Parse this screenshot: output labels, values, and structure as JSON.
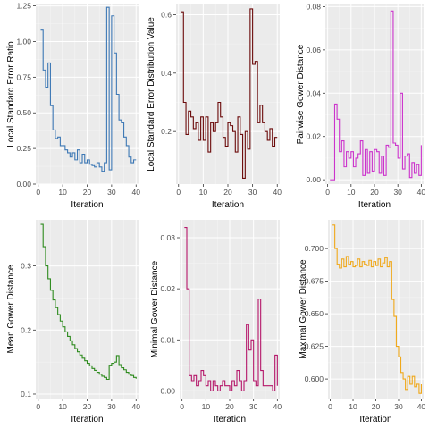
{
  "chart_data": [
    {
      "type": "line",
      "step": true,
      "xlabel": "Iteration",
      "ylabel": "Local Standard Error Ratio",
      "color": "#3d78b5",
      "xlim": [
        -1,
        41
      ],
      "ylim": [
        0,
        1.26
      ],
      "x_ticks": [
        0,
        10,
        20,
        30,
        40
      ],
      "y_ticks": [
        0.0,
        0.25,
        0.5,
        0.75,
        1.0,
        1.25
      ],
      "y_tick_labels": [
        "0.00",
        "0.25",
        "0.50",
        "0.75",
        "1.00",
        "1.25"
      ],
      "x": [
        1,
        2,
        3,
        4,
        5,
        6,
        7,
        8,
        9,
        10,
        11,
        12,
        13,
        14,
        15,
        16,
        17,
        18,
        19,
        20,
        21,
        22,
        23,
        24,
        25,
        26,
        27,
        28,
        29,
        30,
        31,
        32,
        33,
        34,
        35,
        36,
        37,
        38,
        39,
        40
      ],
      "values": [
        1.08,
        0.8,
        0.68,
        0.85,
        0.55,
        0.38,
        0.32,
        0.33,
        0.27,
        0.27,
        0.24,
        0.22,
        0.19,
        0.22,
        0.17,
        0.24,
        0.15,
        0.21,
        0.15,
        0.17,
        0.14,
        0.13,
        0.12,
        0.15,
        0.12,
        0.09,
        0.15,
        1.24,
        0.1,
        1.18,
        0.92,
        0.63,
        0.45,
        0.43,
        0.33,
        0.27,
        0.19,
        0.15,
        0.17,
        0.17
      ]
    },
    {
      "type": "line",
      "step": true,
      "xlabel": "Iteration",
      "ylabel": "Local Standard Error Distribution Value",
      "color": "#6b0a0a",
      "xlim": [
        -1,
        41
      ],
      "ylim": [
        0.02,
        0.635
      ],
      "x_ticks": [
        0,
        10,
        20,
        30,
        40
      ],
      "y_ticks": [
        0.2,
        0.4,
        0.6
      ],
      "y_tick_labels": [
        "0.2",
        "0.4",
        "0.6"
      ],
      "x": [
        1,
        2,
        3,
        4,
        5,
        6,
        7,
        8,
        9,
        10,
        11,
        12,
        13,
        14,
        15,
        16,
        17,
        18,
        19,
        20,
        21,
        22,
        23,
        24,
        25,
        26,
        27,
        28,
        29,
        30,
        31,
        32,
        33,
        34,
        35,
        36,
        37,
        38,
        39,
        40
      ],
      "values": [
        0.61,
        0.3,
        0.19,
        0.27,
        0.25,
        0.21,
        0.23,
        0.17,
        0.25,
        0.17,
        0.25,
        0.13,
        0.23,
        0.2,
        0.23,
        0.3,
        0.25,
        0.18,
        0.15,
        0.23,
        0.22,
        0.2,
        0.13,
        0.25,
        0.19,
        0.04,
        0.2,
        0.14,
        0.62,
        0.43,
        0.44,
        0.23,
        0.29,
        0.23,
        0.2,
        0.17,
        0.21,
        0.15,
        0.18,
        0.18
      ]
    },
    {
      "type": "line",
      "step": true,
      "xlabel": "Iteration",
      "ylabel": "Pairwise Gower Distance",
      "color": "#cc33cc",
      "xlim": [
        -1,
        41
      ],
      "ylim": [
        -0.002,
        0.081
      ],
      "x_ticks": [
        0,
        10,
        20,
        30,
        40
      ],
      "y_ticks": [
        0.0,
        0.02,
        0.04,
        0.06,
        0.08
      ],
      "y_tick_labels": [
        "0.00",
        "0.02",
        "0.04",
        "0.06",
        "0.08"
      ],
      "x": [
        1,
        2,
        3,
        4,
        5,
        6,
        7,
        8,
        9,
        10,
        11,
        12,
        13,
        14,
        15,
        16,
        17,
        18,
        19,
        20,
        21,
        22,
        23,
        24,
        25,
        26,
        27,
        28,
        29,
        30,
        31,
        32,
        33,
        34,
        35,
        36,
        37,
        38,
        39,
        40
      ],
      "values": [
        0.0,
        0.0,
        0.035,
        0.028,
        0.013,
        0.018,
        0.006,
        0.013,
        0.01,
        0.013,
        0.006,
        0.01,
        0.012,
        0.018,
        0.002,
        0.014,
        0.003,
        0.013,
        0.004,
        0.014,
        0.013,
        0.003,
        0.011,
        0.002,
        0.016,
        0.015,
        0.078,
        0.017,
        0.016,
        0.01,
        0.04,
        0.005,
        0.011,
        0.012,
        0.001,
        0.008,
        0.003,
        0.007,
        0.002,
        0.016
      ]
    },
    {
      "type": "line",
      "step": true,
      "xlabel": "Iteration",
      "ylabel": "Mean Gower Distance",
      "color": "#2e8b1e",
      "xlim": [
        -1,
        41
      ],
      "ylim": [
        0.093,
        0.372
      ],
      "x_ticks": [
        0,
        10,
        20,
        30,
        40
      ],
      "y_ticks": [
        0.1,
        0.2,
        0.3
      ],
      "y_tick_labels": [
        "0.1",
        "0.2",
        "0.3"
      ],
      "x": [
        1,
        2,
        3,
        4,
        5,
        6,
        7,
        8,
        9,
        10,
        11,
        12,
        13,
        14,
        15,
        16,
        17,
        18,
        19,
        20,
        21,
        22,
        23,
        24,
        25,
        26,
        27,
        28,
        29,
        30,
        31,
        32,
        33,
        34,
        35,
        36,
        37,
        38,
        39,
        40
      ],
      "values": [
        0.365,
        0.33,
        0.3,
        0.28,
        0.262,
        0.247,
        0.235,
        0.224,
        0.214,
        0.205,
        0.197,
        0.19,
        0.183,
        0.177,
        0.171,
        0.166,
        0.161,
        0.156,
        0.152,
        0.148,
        0.144,
        0.14,
        0.137,
        0.134,
        0.131,
        0.128,
        0.126,
        0.123,
        0.145,
        0.148,
        0.15,
        0.16,
        0.146,
        0.141,
        0.138,
        0.134,
        0.131,
        0.129,
        0.126,
        0.124
      ]
    },
    {
      "type": "line",
      "step": true,
      "xlabel": "Iteration",
      "ylabel": "Minimal Gower Distance",
      "color": "#b5176a",
      "xlim": [
        -1,
        41
      ],
      "ylim": [
        -0.0015,
        0.0335
      ],
      "x_ticks": [
        0,
        10,
        20,
        30,
        40
      ],
      "y_ticks": [
        0.0,
        0.01,
        0.02,
        0.03
      ],
      "y_tick_labels": [
        "0.00",
        "0.01",
        "0.02",
        "0.03"
      ],
      "x": [
        1,
        2,
        3,
        4,
        5,
        6,
        7,
        8,
        9,
        10,
        11,
        12,
        13,
        14,
        15,
        16,
        17,
        18,
        19,
        20,
        21,
        22,
        23,
        24,
        25,
        26,
        27,
        28,
        29,
        30,
        31,
        32,
        33,
        34,
        35,
        36,
        37,
        38,
        39,
        40
      ],
      "values": [
        0.032,
        0.02,
        0.003,
        0.002,
        0.003,
        0.001,
        0.002,
        0.004,
        0.003,
        0.001,
        0.002,
        0.0,
        0.002,
        0.001,
        0.0,
        0.001,
        0.002,
        0.001,
        0.001,
        0.0,
        0.002,
        0.001,
        0.004,
        0.002,
        0.0,
        0.002,
        0.013,
        0.008,
        0.01,
        0.002,
        0.001,
        0.018,
        0.004,
        0.001,
        0.001,
        0.001,
        0.001,
        0.0,
        0.007,
        0.001
      ]
    },
    {
      "type": "line",
      "step": true,
      "xlabel": "Iteration",
      "ylabel": "Maximal Gower Distance",
      "color": "#f0a81a",
      "xlim": [
        -1,
        41
      ],
      "ylim": [
        0.585,
        0.722
      ],
      "x_ticks": [
        0,
        10,
        20,
        30,
        40
      ],
      "y_ticks": [
        0.6,
        0.625,
        0.65,
        0.675,
        0.7
      ],
      "y_tick_labels": [
        "0.600",
        "0.625",
        "0.650",
        "0.675",
        "0.700"
      ],
      "x": [
        1,
        2,
        3,
        4,
        5,
        6,
        7,
        8,
        9,
        10,
        11,
        12,
        13,
        14,
        15,
        16,
        17,
        18,
        19,
        20,
        21,
        22,
        23,
        24,
        25,
        26,
        27,
        28,
        29,
        30,
        31,
        32,
        33,
        34,
        35,
        36,
        37,
        38,
        39,
        40
      ],
      "values": [
        0.718,
        0.7,
        0.688,
        0.685,
        0.692,
        0.686,
        0.694,
        0.688,
        0.69,
        0.686,
        0.687,
        0.692,
        0.686,
        0.69,
        0.688,
        0.687,
        0.691,
        0.686,
        0.69,
        0.687,
        0.692,
        0.686,
        0.689,
        0.693,
        0.686,
        0.69,
        0.661,
        0.648,
        0.625,
        0.617,
        0.605,
        0.6,
        0.592,
        0.602,
        0.596,
        0.602,
        0.594,
        0.596,
        0.589,
        0.596
      ]
    }
  ]
}
